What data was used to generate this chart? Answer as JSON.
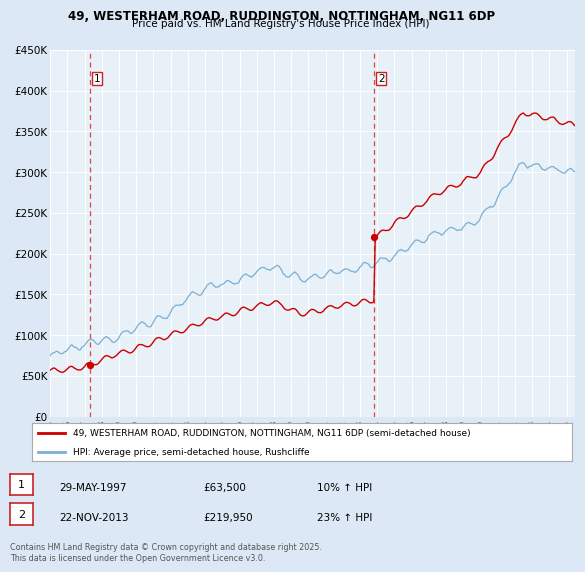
{
  "title1": "49, WESTERHAM ROAD, RUDDINGTON, NOTTINGHAM, NG11 6DP",
  "title2": "Price paid vs. HM Land Registry's House Price Index (HPI)",
  "bg_color": "#dce8f5",
  "plot_bg": "#e8f0f8",
  "grid_color": "#ffffff",
  "purchase1_label": "29-MAY-1997",
  "purchase1_price": 63500,
  "purchase1_hpi": "10% ↑ HPI",
  "purchase2_label": "22-NOV-2013",
  "purchase2_price": 219950,
  "purchase2_hpi": "23% ↑ HPI",
  "legend1": "49, WESTERHAM ROAD, RUDDINGTON, NOTTINGHAM, NG11 6DP (semi-detached house)",
  "legend2": "HPI: Average price, semi-detached house, Rushcliffe",
  "footer": "Contains HM Land Registry data © Crown copyright and database right 2025.\nThis data is licensed under the Open Government Licence v3.0.",
  "ylim": [
    0,
    450000
  ],
  "yticks": [
    0,
    50000,
    100000,
    150000,
    200000,
    250000,
    300000,
    350000,
    400000,
    450000
  ],
  "ytick_labels": [
    "£0",
    "£50K",
    "£100K",
    "£150K",
    "£200K",
    "£250K",
    "£300K",
    "£350K",
    "£400K",
    "£450K"
  ],
  "xstart": 1995.0,
  "xend": 2025.5,
  "line1_color": "#cc0000",
  "line2_color": "#7aafd4",
  "marker_color": "#cc0000",
  "vline_color": "#dd4444",
  "label_box_edge": "#cc2222"
}
